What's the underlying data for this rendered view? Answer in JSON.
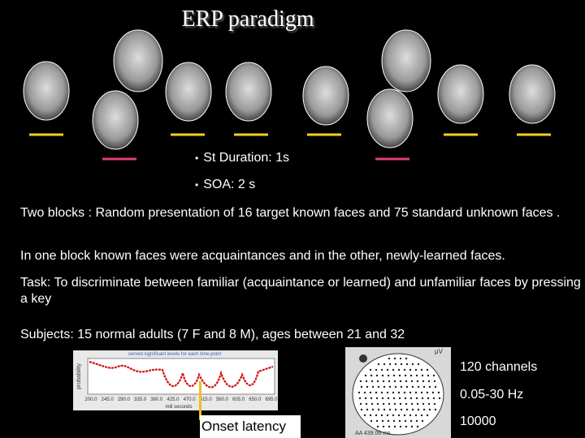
{
  "title": "ERP paradigm",
  "bullets": [
    "St Duration: 1s",
    "SOA: 2 s"
  ],
  "paragraphs": [
    "Two blocks  : Random presentation of  16 target known faces and  75 standard unknown faces .",
    "In one block known faces were acquaintances and in the other, newly-learned faces.",
    "Task: To discriminate between familiar (acquaintance or learned) and unfamiliar faces by pressing a key",
    "Subjects: 15 normal adults (7 F and 8 M), ages between 21 and 32"
  ],
  "plot": {
    "title": "served significant levels for each time point",
    "y_label": "probability",
    "x_ticks": [
      "200.0",
      "245.0",
      "290.0",
      "335.0",
      "380.0",
      "425.0",
      "470.0",
      "515.0",
      "560.0",
      "605.0",
      "650.0",
      "695.0"
    ],
    "x_label": "mili seconds"
  },
  "head_map": {
    "unit": "μV",
    "time": "AA 439.06 ms"
  },
  "specs": [
    "120 channels",
    "0.05-30 Hz",
    "10000"
  ],
  "onset_label": "Onset latency"
}
